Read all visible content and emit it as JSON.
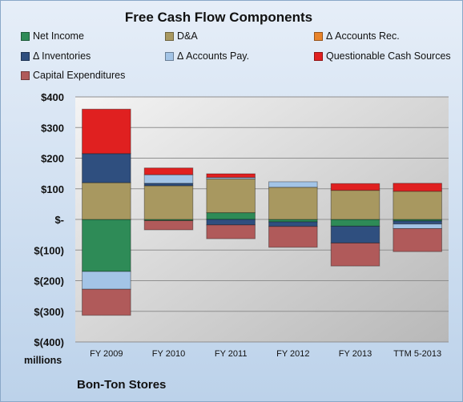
{
  "chart_data": {
    "type": "bar",
    "stacked": true,
    "title": "Free Cash Flow Components",
    "units_label": "millions",
    "company": "Bon-Ton Stores",
    "categories": [
      "FY 2009",
      "FY 2010",
      "FY 2011",
      "FY 2012",
      "FY 2013",
      "TTM 5-2013"
    ],
    "ylim": [
      -400,
      400
    ],
    "yticks": [
      400,
      300,
      200,
      100,
      0,
      -100,
      -200,
      -300,
      -400
    ],
    "ytick_labels": [
      "$400",
      "$300",
      "$200",
      "$100",
      "$-",
      "$(100)",
      "$(200)",
      "$(300)",
      "$(400)"
    ],
    "grid": true,
    "legend_position": "top",
    "series": [
      {
        "name": "Net Income",
        "color": "#2e8b57",
        "values": [
          -170,
          -4,
          22,
          -8,
          -22,
          -5
        ]
      },
      {
        "name": "D&A",
        "color": "#a89860",
        "values": [
          120,
          110,
          110,
          105,
          95,
          92
        ]
      },
      {
        "name": "Δ Accounts Rec.",
        "color": "#e8832a",
        "values": [
          0,
          0,
          0,
          0,
          0,
          0
        ]
      },
      {
        "name": "Δ Inventories",
        "color": "#2f4f7f",
        "values": [
          95,
          8,
          -18,
          -15,
          -55,
          -10
        ]
      },
      {
        "name": "Δ Accounts Pay.",
        "color": "#a3c4e6",
        "values": [
          -58,
          28,
          5,
          18,
          0,
          -15
        ]
      },
      {
        "name": "Questionable Cash Sources",
        "color": "#e02020",
        "values": [
          145,
          22,
          12,
          0,
          22,
          26
        ]
      },
      {
        "name": "Capital Expenditures",
        "color": "#b05a5a",
        "values": [
          -85,
          -30,
          -45,
          -68,
          -75,
          -75
        ]
      }
    ]
  }
}
